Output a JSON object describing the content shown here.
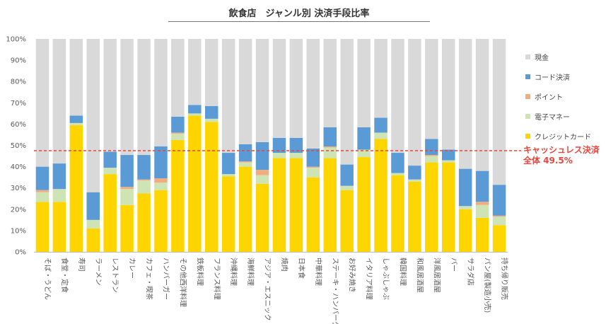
{
  "chart_data": {
    "type": "stacked-bar",
    "title": "飲食店　ジャンル別 決済手段比率",
    "ylim": [
      0,
      100
    ],
    "yticks": [
      "0%",
      "10%",
      "20%",
      "30%",
      "40%",
      "50%",
      "60%",
      "70%",
      "80%",
      "90%",
      "100%"
    ],
    "categories": [
      "そば・うどん",
      "食堂・定食",
      "寿司",
      "ラーメン",
      "レストラン",
      "カレー",
      "カフェ・喫茶",
      "ハンバーガー",
      "その他西洋料理",
      "鉄板料理",
      "フランス料理",
      "沖縄料理",
      "海鮮料理",
      "アジア・エスニック",
      "焼肉",
      "日本食",
      "中華料理",
      "ステーキ・ハンバーグ",
      "お好み焼き",
      "イタリア料理",
      "しゃぶしゃぶ",
      "韓国料理",
      "和風居酒屋",
      "洋風居酒屋",
      "バー",
      "サラダ店",
      "パン屋(製造小売)",
      "持ち帰り販売"
    ],
    "series": [
      {
        "name": "クレジットカード",
        "color": "#ffd500",
        "values": [
          23.5,
          23.5,
          59.5,
          11,
          36.5,
          22,
          27.5,
          29,
          52.5,
          64,
          61,
          35.5,
          40,
          32,
          44,
          44,
          35,
          44,
          29,
          44.5,
          53,
          36,
          33,
          42,
          42,
          20,
          16,
          12.5
        ]
      },
      {
        "name": "電子マネー",
        "color": "#cfe4b4",
        "values": [
          4.5,
          6,
          1,
          4,
          3,
          7.5,
          6,
          3.5,
          3,
          1,
          1.5,
          1,
          2,
          4,
          2.5,
          2.5,
          4.5,
          5,
          2,
          3.5,
          3,
          1,
          1,
          3,
          1,
          1.5,
          6,
          4
        ]
      },
      {
        "name": "ポイント",
        "color": "#f2ad7f",
        "values": [
          1,
          0,
          0,
          0,
          0,
          1,
          0.5,
          2,
          0.5,
          0,
          0,
          0,
          0.5,
          2.5,
          0,
          0,
          0.5,
          0.5,
          0,
          0,
          0,
          0,
          0,
          0.5,
          0,
          0,
          1.5,
          0.5
        ]
      },
      {
        "name": "コード決済",
        "color": "#5b9bd5",
        "values": [
          11,
          12,
          3.5,
          13,
          7.5,
          15,
          11.5,
          15,
          7.5,
          4,
          6,
          10,
          8,
          13,
          7,
          7,
          8.5,
          9,
          10,
          10.5,
          7,
          9.5,
          6.5,
          7.5,
          5,
          17.5,
          14.5,
          14.5
        ]
      },
      {
        "name": "現金",
        "color": "#d9d9d9",
        "values": [
          60,
          58.5,
          36,
          72,
          53,
          54.5,
          54.5,
          50.5,
          36.5,
          31,
          31.5,
          53.5,
          49.5,
          48.5,
          46.5,
          46.5,
          51.5,
          41.5,
          59,
          41.5,
          37,
          53.5,
          59.5,
          47,
          52,
          61,
          62,
          68.5
        ]
      }
    ],
    "legend": [
      "現金",
      "コード決済",
      "ポイント",
      "電子マネー",
      "クレジットカード"
    ],
    "reference_line": {
      "value": 47.5,
      "color": "#e8453c",
      "label": [
        "キャッシュレス決済",
        "全体 49.5%"
      ]
    },
    "legend_position": "right"
  }
}
